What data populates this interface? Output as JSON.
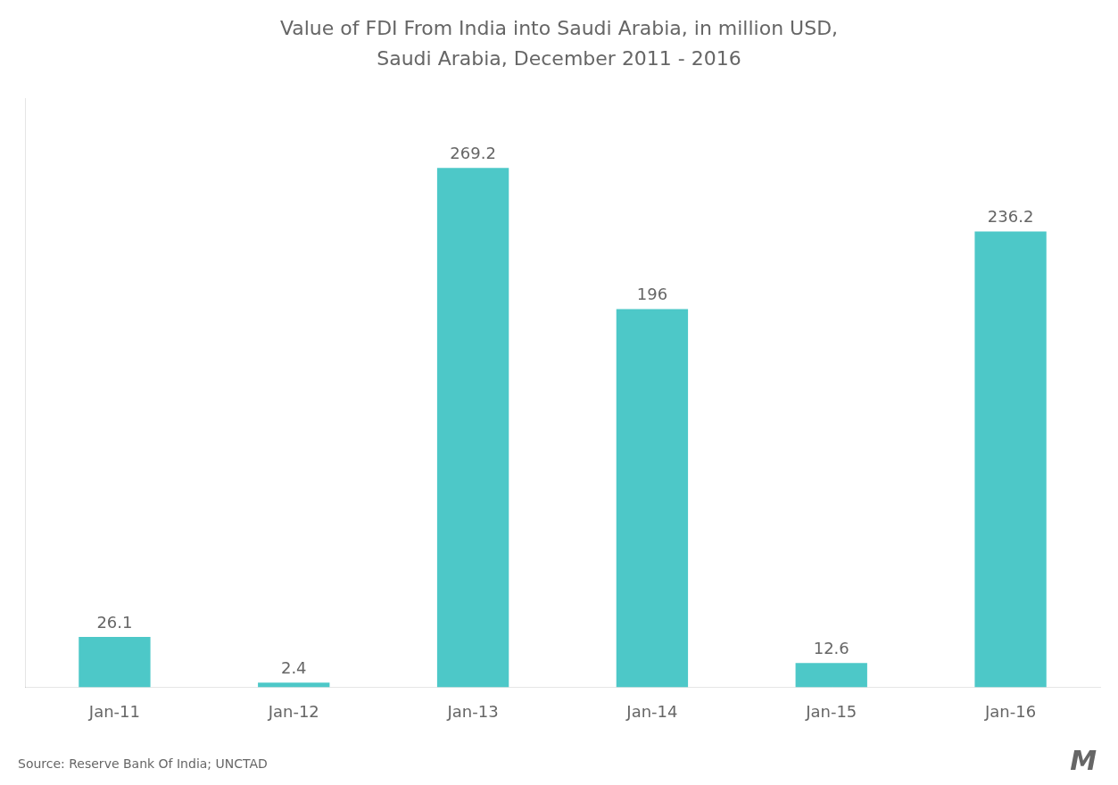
{
  "chart_data": {
    "type": "bar",
    "title": "Value of FDI From India into Saudi Arabia, in million USD,",
    "subtitle": "Saudi Arabia, December 2011 - 2016",
    "categories": [
      "Jan-11",
      "Jan-12",
      "Jan-13",
      "Jan-14",
      "Jan-15",
      "Jan-16"
    ],
    "values": [
      26.1,
      2.4,
      269.2,
      196,
      12.6,
      236.2
    ],
    "color": "#4DC8C8",
    "ylim": [
      0,
      305
    ],
    "grid": false,
    "data_labels": true,
    "tick_labels": "x",
    "annotations": [
      "Source: Reserve Bank Of India; UNCTAD",
      "Μ"
    ]
  }
}
